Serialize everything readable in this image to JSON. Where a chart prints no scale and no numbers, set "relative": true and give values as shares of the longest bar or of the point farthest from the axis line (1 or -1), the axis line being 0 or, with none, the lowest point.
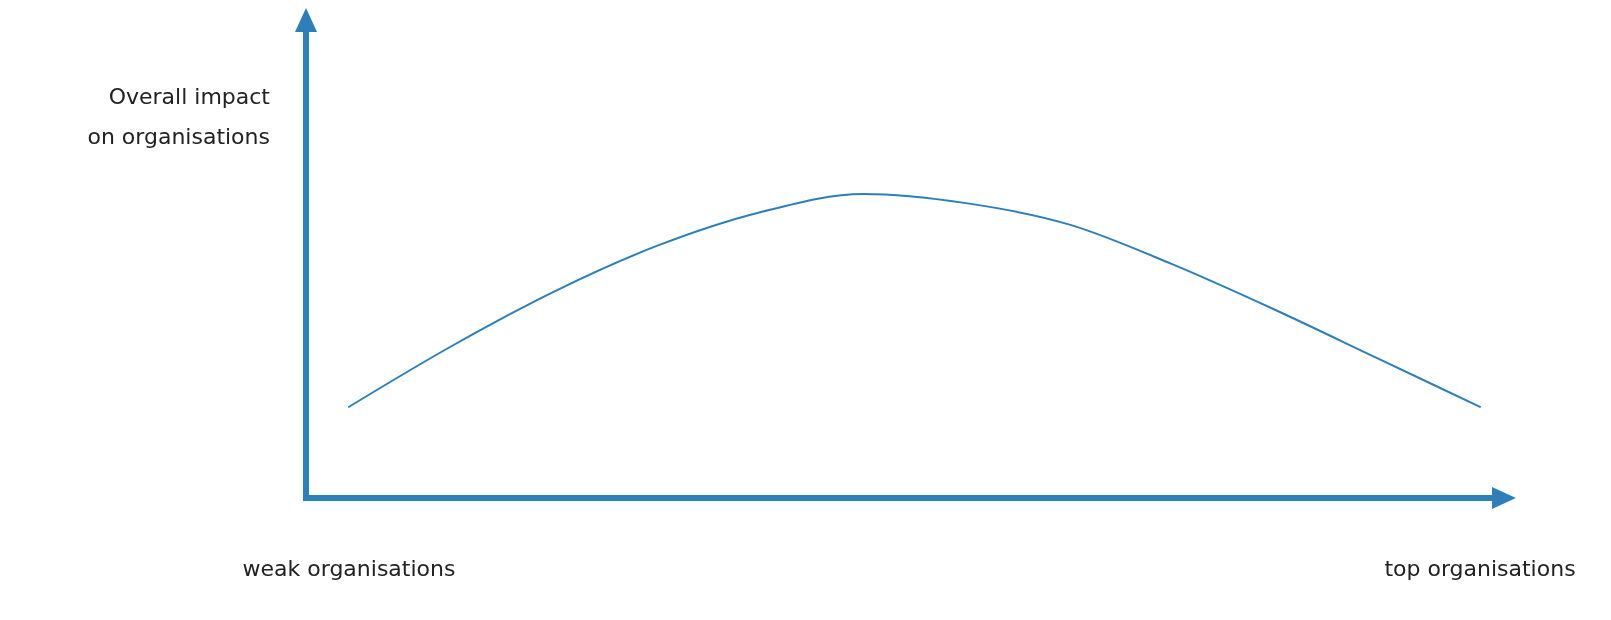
{
  "chart_data": {
    "type": "line",
    "relative": true,
    "ylabel": "Overall impact on organisations",
    "categories": [
      "weak organisations",
      null,
      null,
      null,
      null,
      null,
      null,
      null,
      null,
      null,
      null,
      "top organisations"
    ],
    "series": [
      {
        "color": "#2e7fb8",
        "values": [
          0.3,
          0.5,
          0.68,
          0.83,
          0.94,
          1,
          0.97,
          0.9,
          0.77,
          0.62,
          0.46,
          0.3
        ]
      }
    ],
    "grid": false,
    "legend": false
  }
}
